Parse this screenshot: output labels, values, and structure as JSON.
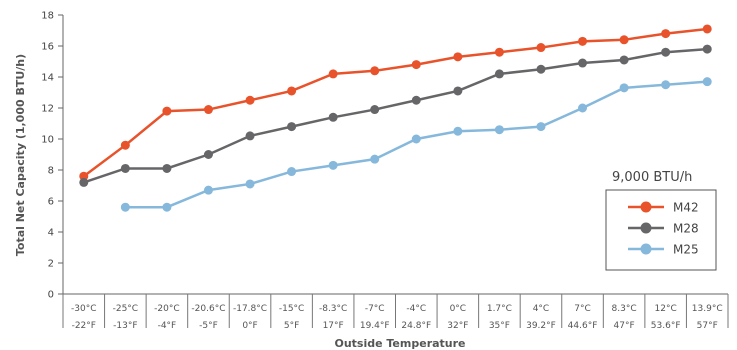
{
  "chart_data": {
    "type": "line",
    "xlabel": "Outside Temperature",
    "ylabel": "Total Net Capacity (1,000 BTU/h)",
    "ylim": [
      0,
      18
    ],
    "yticks": [
      0,
      2,
      4,
      6,
      8,
      10,
      12,
      14,
      16,
      18
    ],
    "grid": false,
    "categories_c": [
      "-30°C",
      "-25°C",
      "-20°C",
      "-20.6°C",
      "-17.8°C",
      "-15°C",
      "-8.3°C",
      "-7°C",
      "-4°C",
      "0°C",
      "1.7°C",
      "4°C",
      "7°C",
      "8.3°C",
      "12°C",
      "13.9°C"
    ],
    "categories_f": [
      "-22°F",
      "-13°F",
      "-4°F",
      "-5°F",
      "0°F",
      "5°F",
      "17°F",
      "19.4°F",
      "24.8°F",
      "32°F",
      "35°F",
      "39.2°F",
      "44.6°F",
      "47°F",
      "53.6°F",
      "57°F"
    ],
    "legend_title": "9,000 BTU/h",
    "legend_position": "right",
    "series": [
      {
        "name": "M42",
        "color": "#e8532b",
        "values": [
          7.6,
          9.6,
          11.8,
          11.9,
          12.5,
          13.1,
          14.2,
          14.4,
          14.8,
          15.3,
          15.6,
          15.9,
          16.3,
          16.4,
          16.8,
          17.1
        ]
      },
      {
        "name": "M28",
        "color": "#666669",
        "values": [
          7.2,
          8.1,
          8.1,
          9.0,
          10.2,
          10.8,
          11.4,
          11.9,
          12.5,
          13.1,
          14.2,
          14.5,
          14.9,
          15.1,
          15.6,
          15.8
        ]
      },
      {
        "name": "M25",
        "color": "#86b8dc",
        "values": [
          null,
          5.6,
          5.6,
          6.7,
          7.1,
          7.9,
          8.3,
          8.7,
          10.0,
          10.5,
          10.6,
          10.8,
          12.0,
          13.3,
          13.5,
          13.7
        ]
      }
    ]
  }
}
